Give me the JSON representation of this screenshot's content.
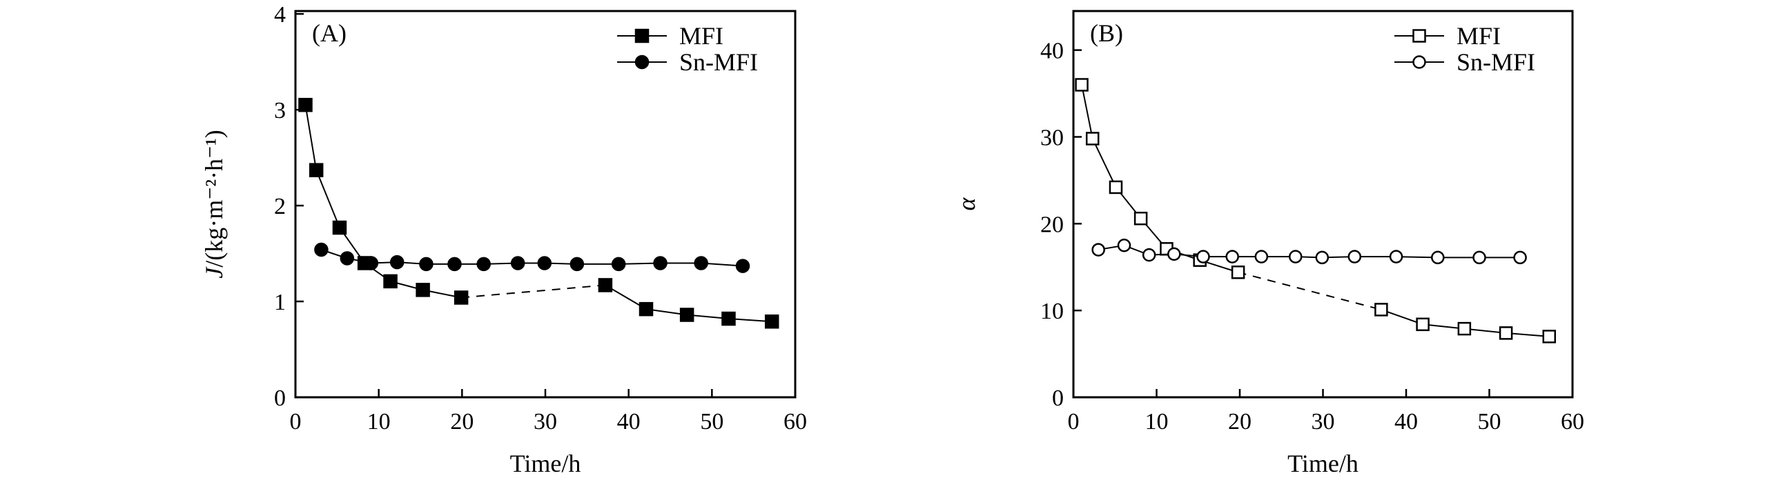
{
  "chart_data": [
    {
      "type": "line",
      "panel_label": "(A)",
      "xlabel": "Time/h",
      "ylabel_italic": "J",
      "ylabel_rest": "/(kg·m⁻²·h⁻¹)",
      "xlim": [
        0,
        60
      ],
      "ylim": [
        0,
        4.03
      ],
      "xticks": [
        "0",
        "10",
        "20",
        "30",
        "40",
        "50",
        "60"
      ],
      "yticks": [
        "0",
        "1",
        "2",
        "3",
        "4"
      ],
      "grid": false,
      "legend_position": "top-right",
      "series": [
        {
          "name": "MFI",
          "marker": "filled-square",
          "color": "#000000",
          "dashed_between": [
            19.9,
            37.2
          ],
          "x": [
            1.2,
            2.5,
            5.3,
            8.3,
            11.4,
            15.3,
            19.9,
            37.2,
            42.1,
            47.0,
            52.0,
            57.2
          ],
          "y": [
            3.05,
            2.37,
            1.77,
            1.4,
            1.21,
            1.12,
            1.04,
            1.17,
            0.92,
            0.86,
            0.82,
            0.79
          ]
        },
        {
          "name": "Sn-MFI",
          "marker": "filled-circle",
          "color": "#000000",
          "x": [
            3.1,
            6.2,
            9.1,
            12.2,
            15.7,
            19.1,
            22.6,
            26.7,
            29.9,
            33.8,
            38.8,
            43.8,
            48.7,
            53.7
          ],
          "y": [
            1.54,
            1.45,
            1.4,
            1.41,
            1.39,
            1.39,
            1.39,
            1.4,
            1.4,
            1.39,
            1.39,
            1.4,
            1.4,
            1.37
          ]
        }
      ]
    },
    {
      "type": "line",
      "panel_label": "(B)",
      "xlabel": "Time/h",
      "ylabel_italic": "α",
      "ylabel_rest": "",
      "xlim": [
        0,
        60
      ],
      "ylim": [
        0,
        44.5
      ],
      "xticks": [
        "0",
        "10",
        "20",
        "30",
        "40",
        "50",
        "60"
      ],
      "yticks": [
        "0",
        "10",
        "20",
        "30",
        "40"
      ],
      "grid": false,
      "legend_position": "top-right",
      "series": [
        {
          "name": "MFI",
          "marker": "open-square",
          "color": "#000000",
          "dashed_between": [
            19.8,
            37.0
          ],
          "x": [
            1.0,
            2.3,
            5.1,
            8.1,
            11.2,
            15.2,
            19.8,
            37.0,
            42.0,
            47.0,
            52.0,
            57.2
          ],
          "y": [
            36.0,
            29.8,
            24.2,
            20.6,
            17.1,
            15.8,
            14.4,
            10.1,
            8.4,
            7.9,
            7.4,
            7.0
          ]
        },
        {
          "name": "Sn-MFI",
          "marker": "open-circle",
          "color": "#000000",
          "x": [
            3.0,
            6.1,
            9.1,
            12.1,
            15.6,
            19.1,
            22.6,
            26.7,
            29.9,
            33.8,
            38.8,
            43.8,
            48.8,
            53.7
          ],
          "y": [
            17.0,
            17.5,
            16.4,
            16.5,
            16.2,
            16.2,
            16.2,
            16.2,
            16.1,
            16.2,
            16.2,
            16.1,
            16.1,
            16.1
          ]
        }
      ]
    }
  ]
}
